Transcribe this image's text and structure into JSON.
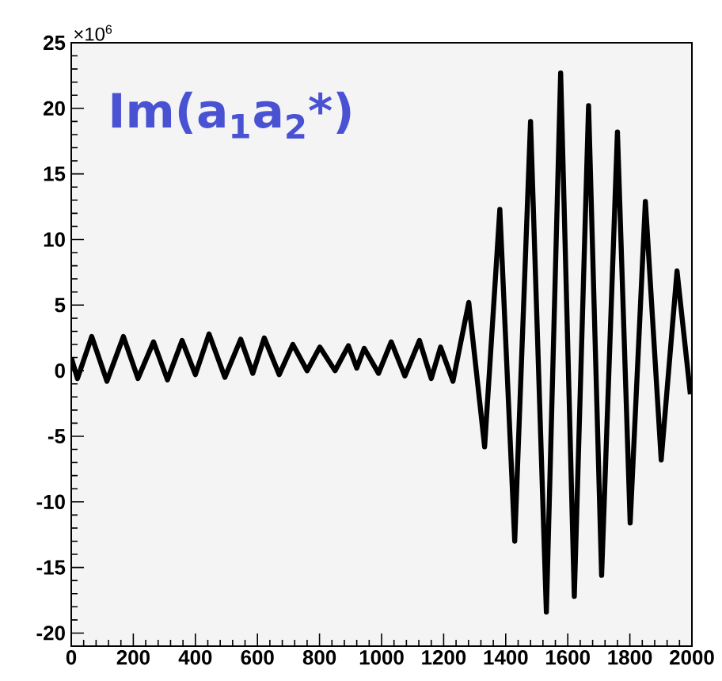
{
  "chart_data": {
    "type": "line",
    "title": "Im(a$_{1}$a$_{2}$*)",
    "annotations": [
      "×10$^{6}$"
    ],
    "color": "#000000",
    "x": [
      0,
      20,
      66,
      115,
      168,
      215,
      265,
      310,
      357,
      400,
      444,
      495,
      546,
      585,
      622,
      670,
      714,
      760,
      801,
      850,
      893,
      920,
      944,
      990,
      1031,
      1075,
      1122,
      1160,
      1190,
      1230,
      1281,
      1332,
      1381,
      1429,
      1480,
      1531,
      1577,
      1621,
      1667,
      1709,
      1760,
      1801,
      1850,
      1901,
      1952,
      1995
    ],
    "values": [
      1.0,
      -0.6,
      2.6,
      -0.8,
      2.6,
      -0.6,
      2.2,
      -0.7,
      2.3,
      -0.3,
      2.8,
      -0.5,
      2.4,
      -0.2,
      2.5,
      -0.3,
      2.0,
      0.0,
      1.8,
      0.0,
      1.9,
      0.2,
      1.7,
      -0.2,
      2.2,
      -0.4,
      2.3,
      -0.6,
      1.8,
      -0.8,
      5.2,
      -5.8,
      12.3,
      -13,
      19,
      -18.4,
      22.7,
      -17.2,
      20.2,
      -15.6,
      18.2,
      -11.6,
      12.9,
      -6.8,
      7.6,
      -1.8
    ],
    "xlim": [
      0,
      2000
    ],
    "ylim": [
      -21,
      25
    ],
    "xticks": [
      0,
      200,
      400,
      600,
      800,
      1000,
      1200,
      1400,
      1600,
      1800,
      2000
    ],
    "yticks": [
      -20,
      -15,
      -10,
      -5,
      0,
      5,
      10,
      15,
      20,
      25
    ],
    "marker": "none",
    "line_style": "solid"
  }
}
